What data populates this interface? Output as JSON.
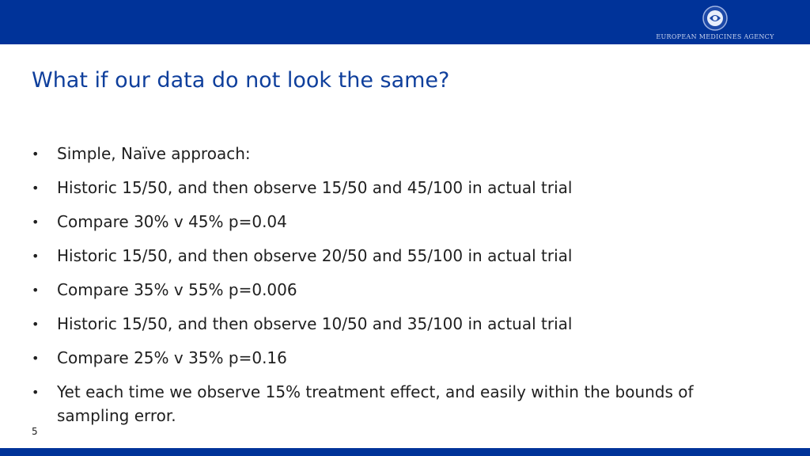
{
  "header": {
    "logo_text": "EUROPEAN MEDICINES AGENCY"
  },
  "slide": {
    "title": "What if our data do not look the same?",
    "bullet_marker": "•",
    "bullets": [
      "Simple, Naïve approach:",
      "Historic 15/50, and then observe 15/50 and 45/100 in actual trial",
      "Compare 30% v 45% p=0.04",
      "Historic 15/50, and then observe 20/50 and 55/100 in actual trial",
      "Compare 35% v 55% p=0.006",
      "Historic 15/50, and then observe 10/50 and 35/100 in actual trial",
      "Compare 25% v 35% p=0.16",
      "Yet each time we observe 15% treatment effect, and easily within the bounds of sampling error."
    ],
    "page_number": "5"
  },
  "colors": {
    "brand_blue": "#003399",
    "title_blue": "#0f3f9c",
    "body_text": "#202020"
  }
}
